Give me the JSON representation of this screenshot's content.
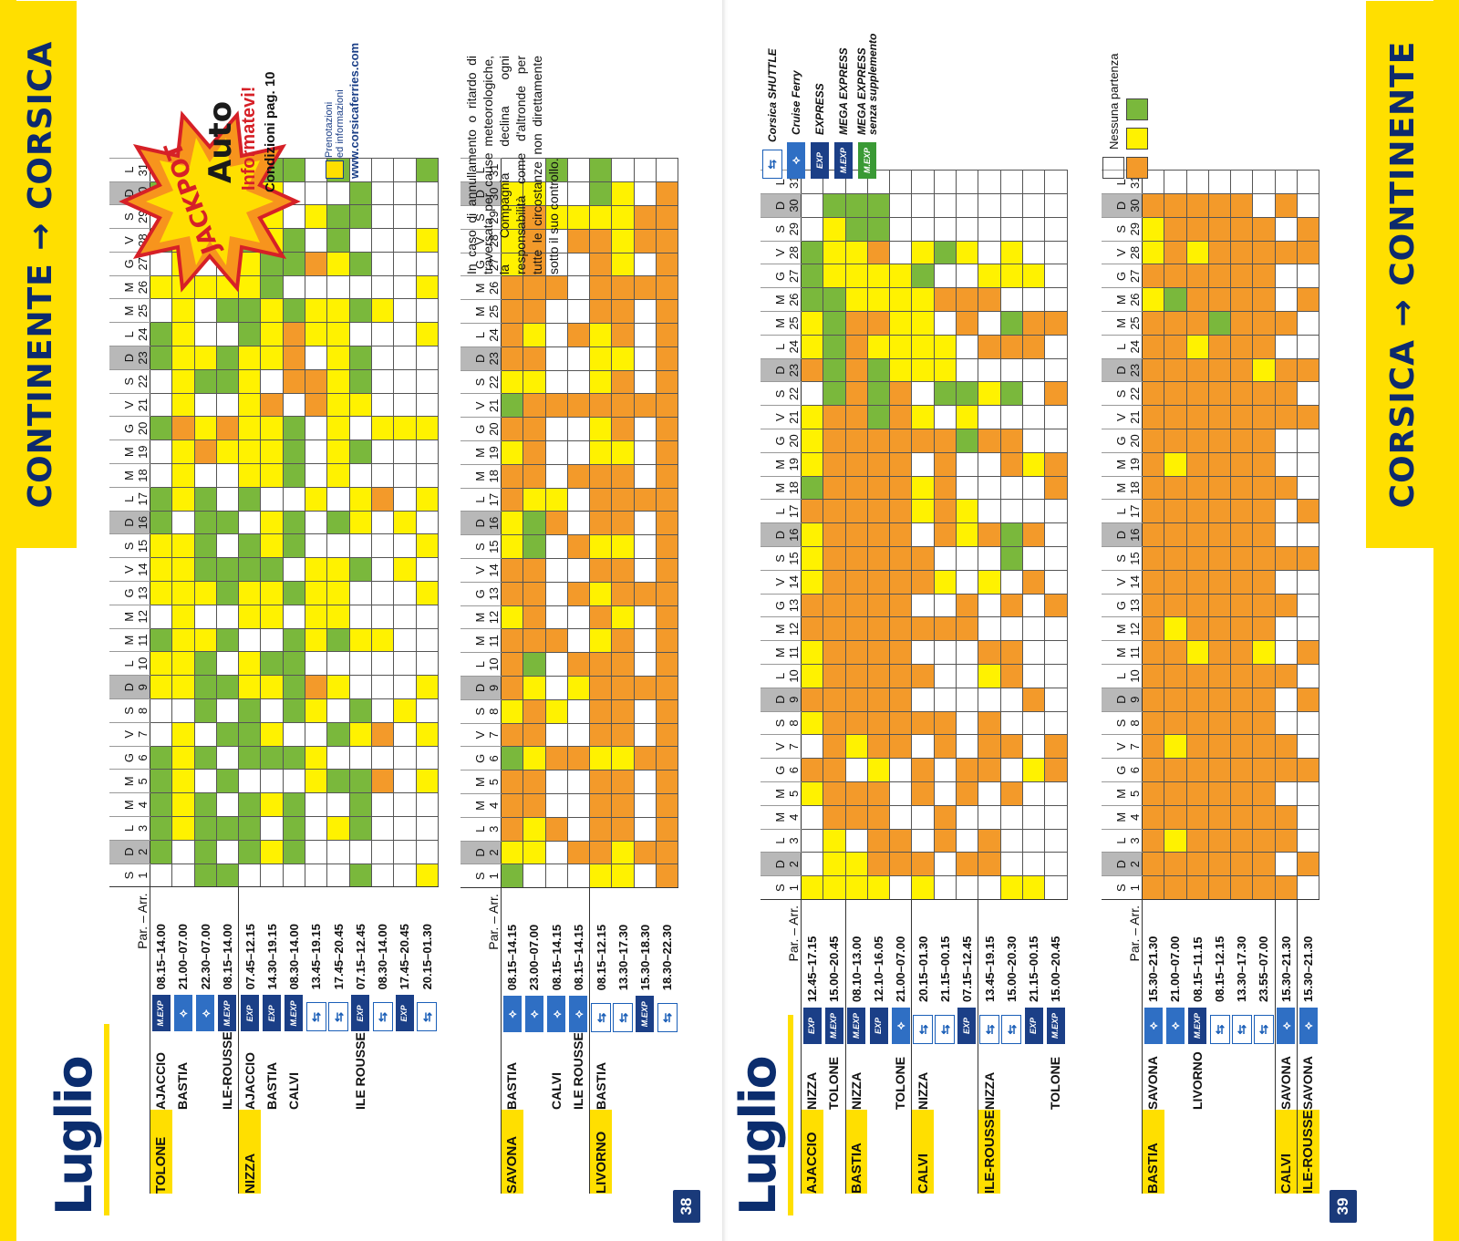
{
  "left_page": {
    "banner": "CONTINENTE → CORSICA",
    "month": "Luglio",
    "page_number": "38",
    "header_label": "Par. – Arr.",
    "day_letters": [
      "S",
      "D",
      "L",
      "M",
      "M",
      "G",
      "V",
      "S",
      "D",
      "L",
      "M",
      "M",
      "G",
      "V",
      "S",
      "D",
      "L",
      "M",
      "M",
      "G",
      "V",
      "S",
      "D",
      "L",
      "M",
      "M",
      "G",
      "V",
      "S",
      "D",
      "L"
    ],
    "day_numbers": [
      "1",
      "2",
      "3",
      "4",
      "5",
      "6",
      "7",
      "8",
      "9",
      "10",
      "11",
      "12",
      "13",
      "14",
      "15",
      "16",
      "17",
      "18",
      "19",
      "20",
      "21",
      "22",
      "23",
      "24",
      "25",
      "26",
      "27",
      "28",
      "29",
      "30",
      "31"
    ],
    "sunday_indices": [
      1,
      8,
      15,
      22,
      29
    ],
    "upper_rows": [
      {
        "port": "TOLONE",
        "dest": "AJACCIO",
        "icon": "M.EXP",
        "time": "08.15–14.00",
        "cells": "_ggggg__yyg_yyygg__g__gg_y_g_g_g"
      },
      {
        "port": "",
        "dest": "BASTIA",
        "icon": "ferry",
        "time": "21.00–07.00",
        "cells": "__yyyyy_yyyyyyy_yyyoyyyyyyyyy__"
      },
      {
        "port": "",
        "dest": "",
        "icon": "ferry",
        "time": "22.30–07.00",
        "cells": "gggg_g_gggy_ygggg_oy_gy__y_ggg_g"
      },
      {
        "port": "",
        "dest": "ILE-ROUSSE",
        "icon": "M.EXP",
        "time": "08.15–14.00",
        "cells": "g_g_g_g_g_g_gg_g__yo_gg_gy_gggy_"
      },
      {
        "port": "NIZZA",
        "dest": "AJACCIO",
        "icon": "EXP",
        "time": "07.45–12.15",
        "cells": "_ggg_gggyy_yygg_gyyyyyyggyygggg_"
      },
      {
        "port": "",
        "dest": "BASTIA",
        "icon": "EXP",
        "time": "14.30–19.15",
        "cells": "_y_y_gy_yg_yygyy_yyyo_yyyggyyyg"
      },
      {
        "port": "",
        "dest": "CALVI",
        "icon": "M.EXP",
        "time": "08.30–14.00",
        "cells": "_ggg_g_gggg_g_gg_ggg_ooog_gg__g"
      },
      {
        "port": "",
        "dest": "",
        "icon": "shuttle",
        "time": "13.45–19.15",
        "cells": "____yy_yo_yyyy__y___oo_yy_o_y_"
      },
      {
        "port": "",
        "dest": "",
        "icon": "shuttle",
        "time": "17.45–20.45",
        "cells": "__y_g_g_y_gyyy_g_yyyyyyyy_ygg_g"
      },
      {
        "port": "",
        "dest": "ILE ROUSSE",
        "icon": "EXP",
        "time": "07.15–12.45",
        "cells": "g_ggg_yg__y__g_yy_g_ygg_g_g_gg_"
      },
      {
        "port": "",
        "dest": "",
        "icon": "shuttle",
        "time": "08.30–14.00",
        "cells": "____o_o___y_____o__y____y_____"
      },
      {
        "port": "",
        "dest": "",
        "icon": "EXP",
        "time": "17.45–20.45",
        "cells": "_______y_____y_y___y_________"
      },
      {
        "port": "",
        "dest": "",
        "icon": "shuttle",
        "time": "20.15–01.30",
        "cells": "y___y_y_y___y_y_y__y___y_y_y__g"
      }
    ],
    "lower_rows": [
      {
        "port": "SAVONA",
        "dest": "BASTIA",
        "icon": "ferry",
        "time": "08.15–14.15",
        "cells": "gyooogoyoooyooyyooyogyooooyyyy"
      },
      {
        "port": "",
        "dest": "",
        "icon": "ferry",
        "time": "23.00–07.00",
        "cells": "_yyooyooygooooggyooooyoyoooooy"
      },
      {
        "port": "",
        "dest": "CALVI",
        "icon": "ferry",
        "time": "08.15–14.15",
        "cells": "__o__o_y__o____oy___o____o__y_g"
      },
      {
        "port": "",
        "dest": "ILE ROUSSE",
        "icon": "ferry",
        "time": "08.15–14.15",
        "cells": "_o___o__yo__o_o__o__o__o___oy_"
      },
      {
        "port": "LIVORNO",
        "dest": "BASTIA",
        "icon": "shuttle",
        "time": "08.15–12.15",
        "cells": "yooooyooooyoyoyoooyyoyyyooooygg"
      },
      {
        "port": "",
        "dest": "",
        "icon": "shuttle",
        "time": "13.30–17.30",
        "cells": "yyoooyoooooyooyoooyoooyoooyyyy"
      },
      {
        "port": "",
        "dest": "",
        "icon": "M.EXP",
        "time": "15.30–18.30",
        "cells": "_o___o__o___o___o___o____o_oo_"
      },
      {
        "port": "",
        "dest": "",
        "icon": "shuttle",
        "time": "18.30–22.30",
        "cells": "oooooooooooooooooooooooooooooo"
      }
    ],
    "note": "In caso di annullamento o ritardo di traversata per cause meteorologiche, la Compagnia declina ogni responsabilità come d'altronde per tutte le circostanze non direttamente sotto il suo controllo.",
    "jackpot": {
      "word": "JACKPOT",
      "product": "Auto",
      "cta": "Informatevi!",
      "conditions": "Condizioni pag. 10"
    },
    "reservation": {
      "line1": "Prenotazioni",
      "line2": "ed informazioni",
      "url": "www.corsicaferries.com"
    }
  },
  "right_page": {
    "banner": "CORSICA → CONTINENTE",
    "month": "Luglio",
    "page_number": "39",
    "header_label": "Par. – Arr.",
    "upper_rows": [
      {
        "port": "AJACCIO",
        "dest": "NIZZA",
        "icon": "EXP",
        "time": "12.45–17.15",
        "cells": "y___yo_yoyyooyyyogyyy_oyyggg"
      },
      {
        "port": "",
        "dest": "TOLONE",
        "icon": "M.EXP",
        "time": "15.00–20.45",
        "cells": "yyyoooooooooooooooooogggggyyyg"
      },
      {
        "port": "BASTIA",
        "dest": "NIZZA",
        "icon": "M.EXP",
        "time": "08.10–13.00",
        "cells": "yy_oo_yooooooooooooooooooyyygg"
      },
      {
        "port": "",
        "dest": "",
        "icon": "EXP",
        "time": "12.10–16.05",
        "cells": "yooooyoooooooooooooogggyoyyogg"
      },
      {
        "port": "",
        "dest": "TOLONE",
        "icon": "ferry",
        "time": "21.00–07.00",
        "cells": "_oo___ooooooooooooooooyyyyy"
      },
      {
        "port": "CALVI",
        "dest": "NIZZA",
        "icon": "shuttle",
        "time": "20.15–01.30",
        "cells": "yo__oo_o_o_o_oo_yy_oy_yyyygy"
      },
      {
        "port": "",
        "dest": "",
        "icon": "shuttle",
        "time": "21.15–00.15",
        "cells": "__oo__oo___o_y_ooooo_gyy_o_g"
      },
      {
        "port": "",
        "dest": "",
        "icon": "EXP",
        "time": "07.15–12.45",
        "cells": "_o__oo_____oo__yy__gyg__oo_y"
      },
      {
        "port": "ILE-ROUSSE",
        "dest": "NIZZA",
        "icon": "shuttle",
        "time": "13.45–19.15",
        "cells": "_oo__ooo_yo__y_o___o_y_o_oy_"
      },
      {
        "port": "",
        "dest": "",
        "icon": "shuttle",
        "time": "15.00–20.30",
        "cells": "y___o_o__oo_o_gg__oo_g_og_yy"
      },
      {
        "port": "",
        "dest": "",
        "icon": "EXP",
        "time": "21.15–00.15",
        "cells": "y____y__o____o_o__y____oo_y"
      },
      {
        "port": "",
        "dest": "TOLONE",
        "icon": "M.EXP",
        "time": "15.00–20.45",
        "cells": "_____oo_____o____oo__o__o__"
      }
    ],
    "lower_rows": [
      {
        "port": "BASTIA",
        "dest": "SAVONA",
        "icon": "ferry",
        "time": "15.30–21.30",
        "cells": "oooooooooooooooooooooooooyoyyo"
      },
      {
        "port": "",
        "dest": "",
        "icon": "ferry",
        "time": "21.00–07.00",
        "cells": "ooyoooyooooyooooooyoooooogoooo"
      },
      {
        "port": "",
        "dest": "LIVORNO",
        "icon": "M.EXP",
        "time": "08.15–11.15",
        "cells": "ooooooooooyooooooooooooyoooyoo"
      },
      {
        "port": "",
        "dest": "",
        "icon": "shuttle",
        "time": "08.15–12.15",
        "cells": "oooooooooooooooooooooooogooooo"
      },
      {
        "port": "",
        "dest": "",
        "icon": "shuttle",
        "time": "13.30–17.30",
        "cells": "oooooooooooooooooooooooooooooo"
      },
      {
        "port": "",
        "dest": "",
        "icon": "shuttle",
        "time": "23.55–07.00",
        "cells": "ooooooooooyoooooooooooyoooooo"
      },
      {
        "port": "CALVI",
        "dest": "SAVONA",
        "icon": "ferry",
        "time": "15.30–21.30",
        "cells": "o_oo_oo__o__o_o__o__ooo_o__o_o"
      },
      {
        "port": "ILE-ROUSSE",
        "dest": "SAVONA",
        "icon": "ferry",
        "time": "15.30–21.30",
        "cells": "_o___o__o_o___o_o___o_o__o_oo_"
      }
    ],
    "legend": [
      {
        "label": "Corsica SHUTTLE",
        "icon": "shuttle"
      },
      {
        "label": "Cruise Ferry",
        "icon": "ferry"
      },
      {
        "label": "EXPRESS",
        "icon": "EXP"
      },
      {
        "label": "MEGA EXPRESS",
        "icon": "M.EXP"
      },
      {
        "label": "MEGA EXPRESS",
        "sub": "senza supplemento",
        "icon": "M.EXP-green"
      }
    ],
    "no_departure_label": "Nessuna partenza"
  },
  "colors": {
    "yellow": "#fff200",
    "orange": "#f39a2a",
    "green": "#7ab83c",
    "banner": "#ffdf00",
    "navy": "#0d2a6d"
  }
}
